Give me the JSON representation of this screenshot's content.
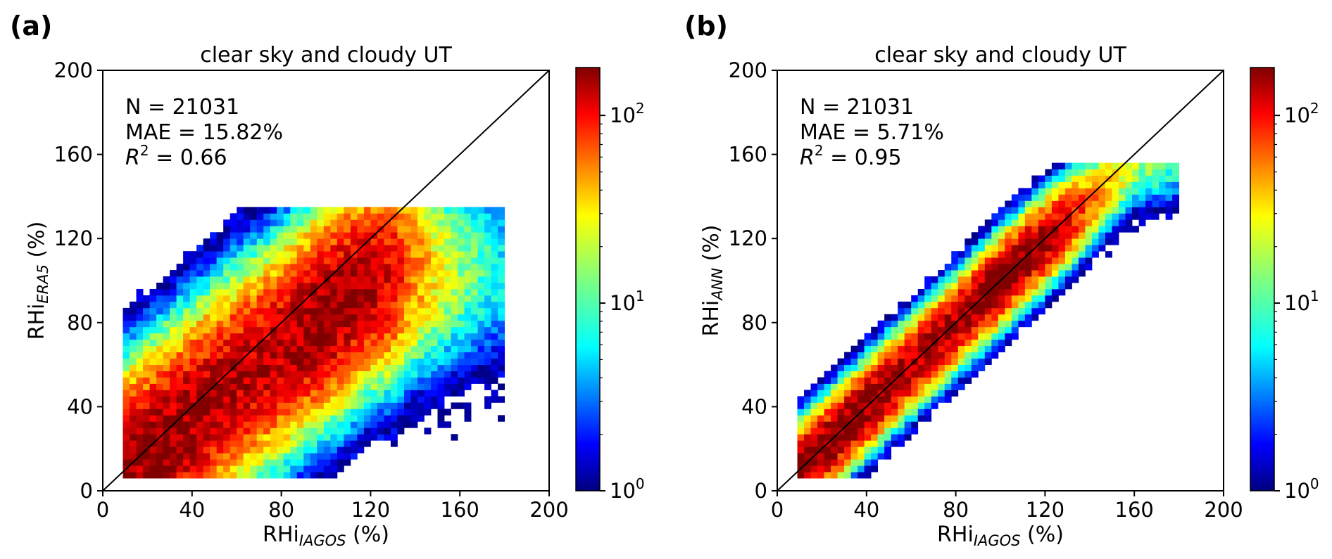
{
  "chart_data": [
    {
      "type": "heatmap",
      "panel_label": "(a)",
      "title": "clear sky and cloudy UT",
      "xlabel": {
        "main": "RHi",
        "sub": "IAGOS",
        "unit": " (%)"
      },
      "ylabel": {
        "main": "RHi",
        "sub": "ERA5",
        "unit": " (%)"
      },
      "xlim": [
        0,
        200
      ],
      "ylim": [
        0,
        200
      ],
      "xticks": [
        "0",
        "40",
        "80",
        "120",
        "160",
        "200"
      ],
      "yticks": [
        "0",
        "40",
        "80",
        "120",
        "160",
        "200"
      ],
      "annotations": {
        "n": "N = 21031",
        "mae": "MAE = 15.82%",
        "r2_value": " = 0.66"
      },
      "one_to_one_line": true,
      "colorbar": {
        "scale": "log",
        "range": [
          1,
          180
        ],
        "ticks": [
          "10",
          "10",
          "10"
        ],
        "exponents": [
          "0",
          "1",
          "2"
        ],
        "colormap": "jet"
      },
      "density_model": {
        "ridge_points": [
          [
            10,
            8
          ],
          [
            20,
            16
          ],
          [
            40,
            34
          ],
          [
            60,
            52
          ],
          [
            80,
            68
          ],
          [
            100,
            85
          ],
          [
            120,
            100
          ],
          [
            140,
            106
          ]
        ],
        "x_range": [
          10,
          180
        ],
        "y_range": [
          5,
          136
        ],
        "spread": 24,
        "peak_count": 150
      }
    },
    {
      "type": "heatmap",
      "panel_label": "(b)",
      "title": "clear sky and cloudy UT",
      "xlabel": {
        "main": "RHi",
        "sub": "IAGOS",
        "unit": " (%)"
      },
      "ylabel": {
        "main": "RHi",
        "sub": "ANN",
        "unit": " (%)"
      },
      "xlim": [
        0,
        200
      ],
      "ylim": [
        0,
        200
      ],
      "xticks": [
        "0",
        "40",
        "80",
        "120",
        "160",
        "200"
      ],
      "yticks": [
        "0",
        "40",
        "80",
        "120",
        "160",
        "200"
      ],
      "annotations": {
        "n": "N = 21031",
        "mae": "MAE = 5.71%",
        "r2_value": " = 0.95"
      },
      "one_to_one_line": true,
      "colorbar": {
        "scale": "log",
        "range": [
          1,
          180
        ],
        "ticks": [
          "10",
          "10",
          "10"
        ],
        "exponents": [
          "0",
          "1",
          "2"
        ],
        "colormap": "jet"
      },
      "density_model": {
        "ridge_points": [
          [
            10,
            10
          ],
          [
            40,
            40
          ],
          [
            80,
            80
          ],
          [
            110,
            110
          ],
          [
            160,
            155
          ]
        ],
        "x_range": [
          10,
          180
        ],
        "y_range": [
          5,
          157
        ],
        "spread": 10,
        "peak_count": 170
      }
    }
  ]
}
